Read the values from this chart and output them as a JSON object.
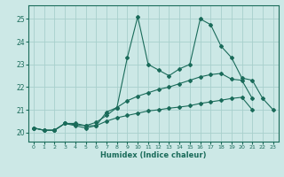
{
  "xlabel": "Humidex (Indice chaleur)",
  "bg_color": "#cce8e6",
  "grid_color": "#a8d0cc",
  "line_color": "#1a6b5a",
  "xlim": [
    -0.5,
    23.5
  ],
  "ylim": [
    19.6,
    25.6
  ],
  "yticks": [
    20,
    21,
    22,
    23,
    24,
    25
  ],
  "xticks": [
    0,
    1,
    2,
    3,
    4,
    5,
    6,
    7,
    8,
    9,
    10,
    11,
    12,
    13,
    14,
    15,
    16,
    17,
    18,
    19,
    20,
    21,
    22,
    23
  ],
  "series": [
    {
      "x": [
        0,
        1,
        2,
        3,
        4,
        5,
        6,
        7,
        8,
        9,
        10,
        11,
        12,
        13,
        14,
        15,
        16,
        17,
        18,
        19,
        20,
        21,
        22,
        23
      ],
      "y": [
        20.2,
        20.1,
        20.1,
        20.4,
        20.4,
        20.3,
        20.3,
        20.9,
        21.1,
        23.3,
        25.1,
        23.0,
        22.75,
        22.5,
        22.8,
        23.0,
        25.0,
        24.75,
        23.8,
        23.3,
        22.4,
        22.3,
        21.5,
        21.0
      ]
    },
    {
      "x": [
        0,
        1,
        2,
        3,
        4,
        5,
        6,
        7,
        8,
        9,
        10,
        11,
        12,
        13,
        14,
        15,
        16,
        17,
        18,
        19,
        20,
        21
      ],
      "y": [
        20.2,
        20.1,
        20.1,
        20.4,
        20.35,
        20.3,
        20.45,
        20.75,
        21.1,
        21.4,
        21.6,
        21.75,
        21.9,
        22.0,
        22.15,
        22.3,
        22.45,
        22.55,
        22.6,
        22.35,
        22.3,
        21.5
      ]
    },
    {
      "x": [
        0,
        1,
        2,
        3,
        4,
        5,
        6,
        7,
        8,
        9,
        10,
        11,
        12,
        13,
        14,
        15,
        16,
        17,
        18,
        19,
        20,
        21
      ],
      "y": [
        20.2,
        20.1,
        20.1,
        20.4,
        20.3,
        20.2,
        20.3,
        20.5,
        20.65,
        20.75,
        20.85,
        20.95,
        21.0,
        21.07,
        21.12,
        21.18,
        21.28,
        21.35,
        21.42,
        21.5,
        21.55,
        21.0
      ]
    }
  ]
}
